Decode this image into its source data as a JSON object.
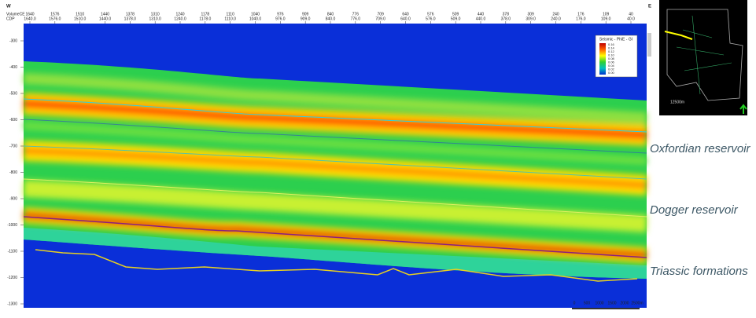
{
  "header": {
    "west": "W",
    "east": "E",
    "row_labels": [
      "VolumeCE",
      "CDP"
    ]
  },
  "top_axis": {
    "row1": [
      "1640",
      "1576",
      "1510",
      "1440",
      "1378",
      "1310",
      "1240",
      "1178",
      "1110",
      "1040",
      "976",
      "909",
      "840",
      "776",
      "709",
      "640",
      "576",
      "509",
      "440",
      "378",
      "309",
      "240",
      "176",
      "109",
      "40"
    ],
    "row2": [
      "1640.0",
      "1576.0",
      "1510.0",
      "1440.0",
      "1378.0",
      "1310.0",
      "1240.0",
      "1178.0",
      "1110.0",
      "1040.0",
      "976.0",
      "909.0",
      "840.0",
      "776.0",
      "709.0",
      "640.0",
      "576.0",
      "509.0",
      "440.0",
      "378.0",
      "309.0",
      "240.0",
      "176.0",
      "109.0",
      "40.0"
    ]
  },
  "depth_axis": [
    "-300",
    "-400",
    "-500",
    "-600",
    "-700",
    "-800",
    "-900",
    "-1000",
    "-1100",
    "-1200",
    "-1300"
  ],
  "legend": {
    "title": "Seismic - PhiE - GI",
    "values": [
      "0.16",
      "0.14",
      "0.12",
      "0.10",
      "0.08",
      "0.06",
      "0.04",
      "0.02",
      "0.00"
    ]
  },
  "scale_bar": {
    "labels": [
      "0",
      "500",
      "1000",
      "1500",
      "2000",
      "2500m"
    ]
  },
  "minimap": {
    "scale": "12500m"
  },
  "annotations": [
    "Oxfordian reservoir",
    "Dogger reservoir",
    "Triassic formations"
  ]
}
